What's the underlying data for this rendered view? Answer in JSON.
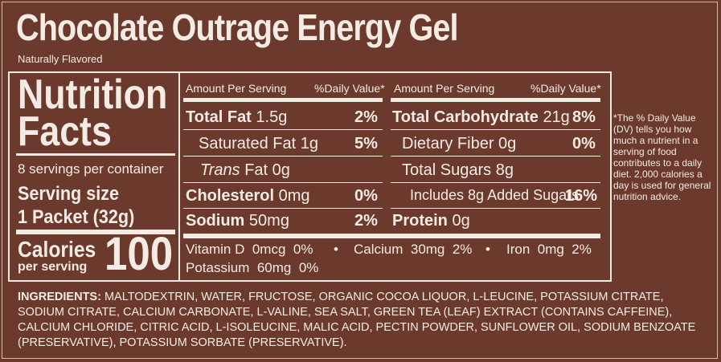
{
  "product": {
    "title": "Chocolate Outrage Energy Gel",
    "subtitle": "Naturally Flavored"
  },
  "facts": {
    "heading_line1": "Nutrition",
    "heading_line2": "Facts",
    "servings_per_container": "8 servings per container",
    "serving_size_label": "Serving size",
    "serving_size_value": "1 Packet (32g)",
    "calories_label": "Calories",
    "calories_sub": "per serving",
    "calories_value": "100"
  },
  "left_col": {
    "amount_header": "Amount Per Serving",
    "dv_header": "%Daily Value*",
    "rows": [
      {
        "label": "Total Fat",
        "amount": "1.5g",
        "dv": "2%"
      },
      {
        "label": "Saturated Fat",
        "amount": "1g",
        "dv": "5%"
      },
      {
        "label_italic": "Trans",
        "label": "Fat",
        "amount": "0g",
        "dv": ""
      },
      {
        "label": "Cholesterol",
        "amount": "0mg",
        "dv": "0%"
      },
      {
        "label": "Sodium",
        "amount": "50mg",
        "dv": "2%"
      }
    ]
  },
  "right_col": {
    "amount_header": "Amount Per Serving",
    "dv_header": "%Daily Value*",
    "rows": [
      {
        "label": "Total Carbohydrate",
        "amount": "21g",
        "dv": "8%"
      },
      {
        "label": "Dietary Fiber",
        "amount": "0g",
        "dv": "0%"
      },
      {
        "label": "Total Sugars",
        "amount": "8g",
        "dv": ""
      },
      {
        "label": "Includes 8g Added Sugars",
        "amount": "",
        "dv": "16%"
      },
      {
        "label": "Protein",
        "amount": "0g",
        "dv": ""
      }
    ]
  },
  "vitamins": {
    "vitamin_d": "Vitamin D",
    "vitamin_d_amt": "0mcg",
    "vitamin_d_dv": "0%",
    "bullet": "•",
    "calcium": "Calcium",
    "calcium_amt": "30mg",
    "calcium_dv": "2%",
    "iron": "Iron",
    "iron_amt": "0mg",
    "iron_dv": "2%",
    "potassium": "Potassium",
    "potassium_amt": "60mg",
    "potassium_dv": "0%"
  },
  "footnote": "*The % Daily Value (DV) tells you how much a nutrient in a serving of food contributes to a daily diet. 2,000 calories a day is used for general nutrition advice.",
  "ingredients": {
    "label": "INGREDIENTS:",
    "text": "MALTODEXTRIN, WATER, FRUCTOSE, ORGANIC COCOA LIQUOR, L-LEUCINE, POTASSIUM CITRATE, SODIUM CITRATE, CALCIUM CARBONATE, L-VALINE, SEA SALT, GREEN TEA (LEAF) EXTRACT (CONTAINS CAFFEINE), CALCIUM CHLORIDE, CITRIC ACID, L-ISOLEUCINE, MALIC ACID, PECTIN POWDER, SUNFLOWER OIL, SODIUM BENZOATE (PRESERVATIVE), POTASSIUM SORBATE (PRESERVATIVE)."
  },
  "colors": {
    "background": "#6b3a2c",
    "text": "#f4ece4"
  }
}
